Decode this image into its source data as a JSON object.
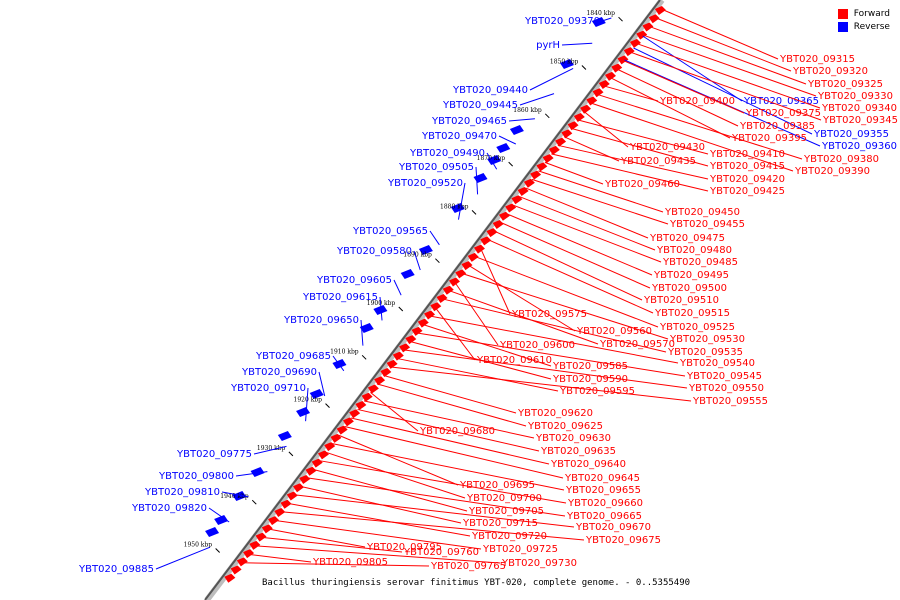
{
  "legend": {
    "forward_label": "Forward",
    "reverse_label": "Reverse",
    "forward_color": "#ff0000",
    "reverse_color": "#0000ff"
  },
  "caption": "Bacillus thuringiensis serovar finitimus YBT-020, complete genome. - 0..5355490",
  "ticks": [
    "1840 kbp",
    "1850 kbp",
    "1860 kbp",
    "1870 kbp",
    "1880 kbp",
    "1890 kbp",
    "1900 kbp",
    "1910 kbp",
    "1920 kbp",
    "1930 kbp",
    "1940 kbp",
    "1950 kbp"
  ],
  "reverse_genes": [
    "YBT020_09370",
    "pyrH",
    "YBT020_09440",
    "YBT020_09445",
    "YBT020_09465",
    "YBT020_09470",
    "YBT020_09490",
    "YBT020_09505",
    "YBT020_09520",
    "YBT020_09565",
    "YBT020_09580",
    "YBT020_09605",
    "YBT020_09615",
    "YBT020_09650",
    "YBT020_09685",
    "YBT020_09690",
    "YBT020_09710",
    "YBT020_09775",
    "YBT020_09800",
    "YBT020_09810",
    "YBT020_09820",
    "YBT020_09885"
  ],
  "reverse_right_genes": [
    "YBT020_09365",
    "YBT020_09355",
    "YBT020_09360"
  ],
  "forward_genes": [
    "YBT020_09315",
    "YBT020_09320",
    "YBT020_09325",
    "YBT020_09330",
    "YBT020_09340",
    "YBT020_09345",
    "YBT020_09375",
    "YBT020_09385",
    "YBT020_09395",
    "YBT020_09400",
    "YBT020_09380",
    "YBT020_09390",
    "YBT020_09430",
    "YBT020_09410",
    "YBT020_09415",
    "YBT020_09435",
    "YBT020_09420",
    "YBT020_09425",
    "YBT020_09460",
    "YBT020_09450",
    "YBT020_09455",
    "YBT020_09475",
    "YBT020_09480",
    "YBT020_09485",
    "YBT020_09495",
    "YBT020_09500",
    "YBT020_09510",
    "YBT020_09515",
    "YBT020_09575",
    "YBT020_09525",
    "YBT020_09560",
    "YBT020_09530",
    "YBT020_09600",
    "YBT020_09570",
    "YBT020_09535",
    "YBT020_09610",
    "YBT020_09540",
    "YBT020_09585",
    "YBT020_09545",
    "YBT020_09590",
    "YBT020_09550",
    "YBT020_09595",
    "YBT020_09555",
    "YBT020_09620",
    "YBT020_09625",
    "YBT020_09680",
    "YBT020_09630",
    "YBT020_09635",
    "YBT020_09640",
    "YBT020_09645",
    "YBT020_09695",
    "YBT020_09655",
    "YBT020_09700",
    "YBT020_09660",
    "YBT020_09705",
    "YBT020_09665",
    "YBT020_09715",
    "YBT020_09670",
    "YBT020_09720",
    "YBT020_09675",
    "YBT020_09725",
    "YBT020_09795",
    "YBT020_09760",
    "YBT020_09730",
    "YBT020_09805",
    "YBT020_09765"
  ]
}
